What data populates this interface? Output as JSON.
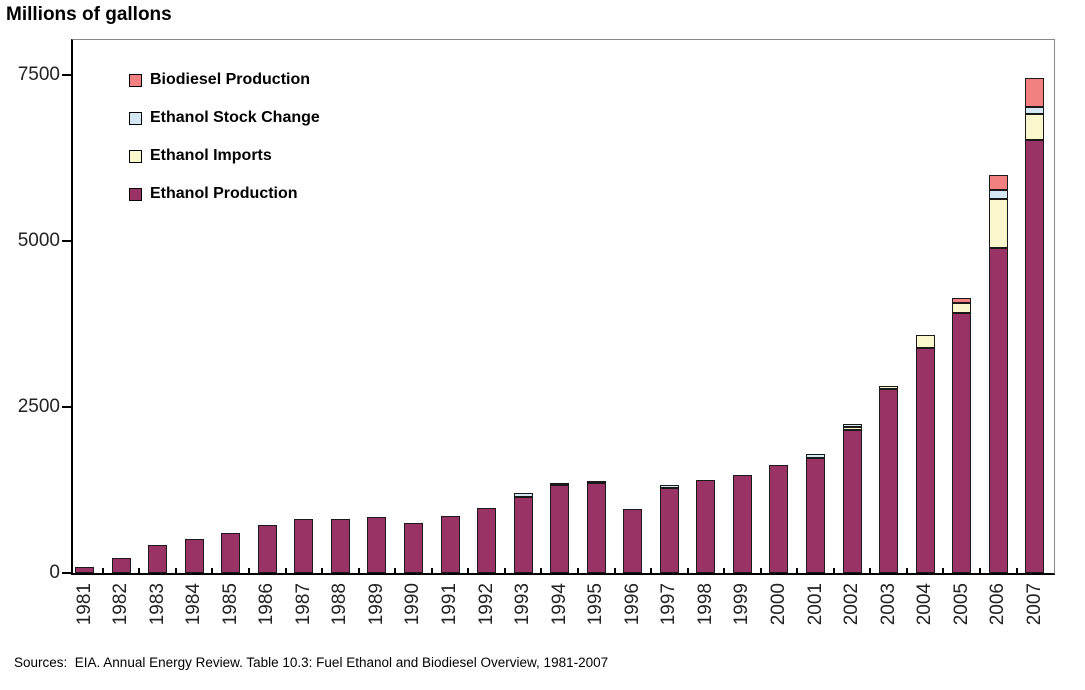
{
  "title": "Millions of gallons",
  "source": "Sources:  EIA. Annual Energy Review. Table 10.3: Fuel Ethanol and Biodiesel Overview, 1981-2007",
  "legend": {
    "items": [
      {
        "label": "Biodiesel Production",
        "color": "#F28080"
      },
      {
        "label": "Ethanol Stock Change",
        "color": "#D3E8F3"
      },
      {
        "label": "Ethanol Imports",
        "color": "#FAF7CC"
      },
      {
        "label": "Ethanol Production",
        "color": "#993366"
      }
    ]
  },
  "chart_data": {
    "type": "bar",
    "stacked": true,
    "title": "Millions of gallons",
    "xlabel": "",
    "ylabel": "Millions of gallons",
    "ylim": [
      0,
      8000
    ],
    "yticks": [
      0,
      2500,
      5000,
      7500
    ],
    "grid": false,
    "legend_position": "top-left-inside",
    "categories": [
      "1981",
      "1982",
      "1983",
      "1984",
      "1985",
      "1986",
      "1987",
      "1988",
      "1989",
      "1990",
      "1991",
      "1992",
      "1993",
      "1994",
      "1995",
      "1996",
      "1997",
      "1998",
      "1999",
      "2000",
      "2001",
      "2002",
      "2003",
      "2004",
      "2005",
      "2006",
      "2007"
    ],
    "series": [
      {
        "name": "Ethanol Production",
        "color": "#993366",
        "values": [
          90,
          230,
          420,
          515,
          610,
          725,
          820,
          820,
          840,
          755,
          860,
          985,
          1150,
          1320,
          1360,
          960,
          1280,
          1400,
          1480,
          1620,
          1740,
          2150,
          2770,
          3390,
          3910,
          4890,
          6520
        ]
      },
      {
        "name": "Ethanol Imports",
        "color": "#FAF7CC",
        "values": [
          0,
          0,
          0,
          0,
          0,
          0,
          0,
          0,
          0,
          0,
          0,
          0,
          0,
          0,
          0,
          0,
          0,
          0,
          0,
          0,
          0,
          45,
          45,
          190,
          150,
          750,
          400
        ]
      },
      {
        "name": "Ethanol Stock Change",
        "color": "#D3E8F3",
        "values": [
          0,
          0,
          0,
          0,
          0,
          0,
          0,
          0,
          0,
          0,
          0,
          0,
          50,
          30,
          30,
          0,
          40,
          0,
          0,
          0,
          60,
          55,
          0,
          0,
          0,
          125,
          100
        ]
      },
      {
        "name": "Biodiesel Production",
        "color": "#F28080",
        "values": [
          0,
          0,
          0,
          0,
          0,
          0,
          0,
          0,
          0,
          0,
          0,
          0,
          0,
          0,
          0,
          0,
          0,
          0,
          0,
          0,
          0,
          0,
          0,
          0,
          75,
          235,
          440
        ]
      }
    ]
  }
}
